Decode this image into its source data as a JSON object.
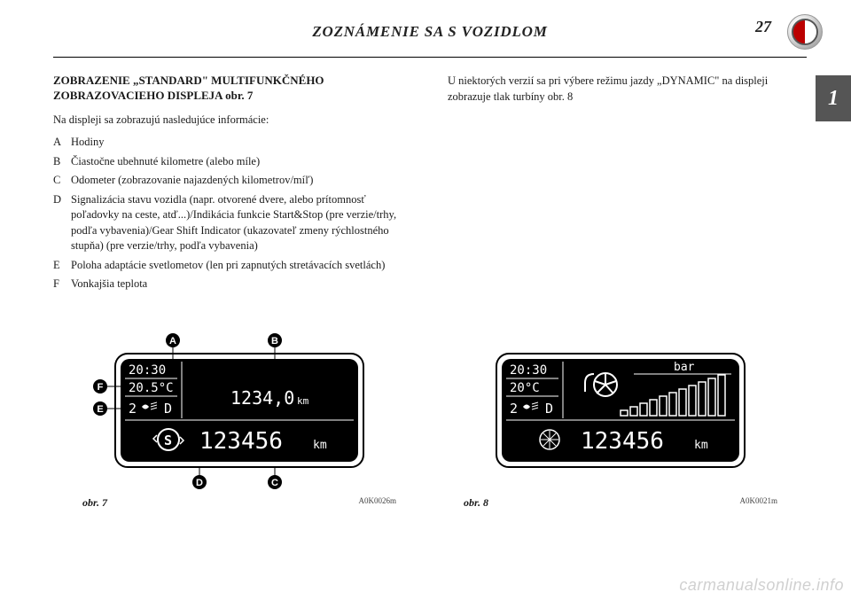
{
  "page": {
    "header": "ZOZNÁMENIE SA S VOZIDLOM",
    "page_number": "27",
    "side_tab": "1",
    "watermark": "carmanualsonline.info"
  },
  "left_col": {
    "title": "ZOBRAZENIE „STANDARD\" MULTIFUNKČNÉHO ZOBRAZOVACIEHO DISPLEJA obr. 7",
    "intro": "Na displeji sa zobrazujú nasledujúce informácie:",
    "items": [
      {
        "letter": "A",
        "text": "Hodiny"
      },
      {
        "letter": "B",
        "text": "Čiastočne ubehnuté kilometre (alebo míle)"
      },
      {
        "letter": "C",
        "text": "Odometer (zobrazovanie najazdených kilometrov/míľ)"
      },
      {
        "letter": "D",
        "text": "Signalizácia stavu vozidla (napr. otvorené dvere, alebo prítomnosť poľadovky na ceste, atď...)/Indikácia funkcie Start&Stop (pre verzie/trhy, podľa vybavenia)/Gear Shift Indicator (ukazovateľ zmeny rýchlostného stupňa) (pre verzie/trhy, podľa vybavenia)"
      },
      {
        "letter": "E",
        "text": "Poloha adaptácie svetlometov (len pri zapnutých stretávacích svetlách)"
      },
      {
        "letter": "F",
        "text": "Vonkajšia teplota"
      }
    ]
  },
  "right_col": {
    "text": "U niektorých verzií sa pri výbere režimu jazdy „DYNAMIC\" na displeji zobrazuje tlak turbíny obr. 8"
  },
  "fig7": {
    "caption": "obr. 7",
    "code": "A0K0026m",
    "time": "20:30",
    "temp": "20.5°C",
    "gear": "2",
    "trip": "1234,0",
    "trip_unit": "km",
    "odo": "123456",
    "odo_unit": "km",
    "callouts": [
      "A",
      "B",
      "C",
      "D",
      "E",
      "F"
    ],
    "bg": "#000000",
    "fg": "#ffffff",
    "pixel_font": "monospace"
  },
  "fig8": {
    "caption": "obr. 8",
    "code": "A0K0021m",
    "time": "20:30",
    "temp": "20°C",
    "gear": "2",
    "bar_label": "bar",
    "odo": "123456",
    "odo_unit": "km",
    "bar_count": 11,
    "bg": "#000000",
    "fg": "#ffffff"
  }
}
